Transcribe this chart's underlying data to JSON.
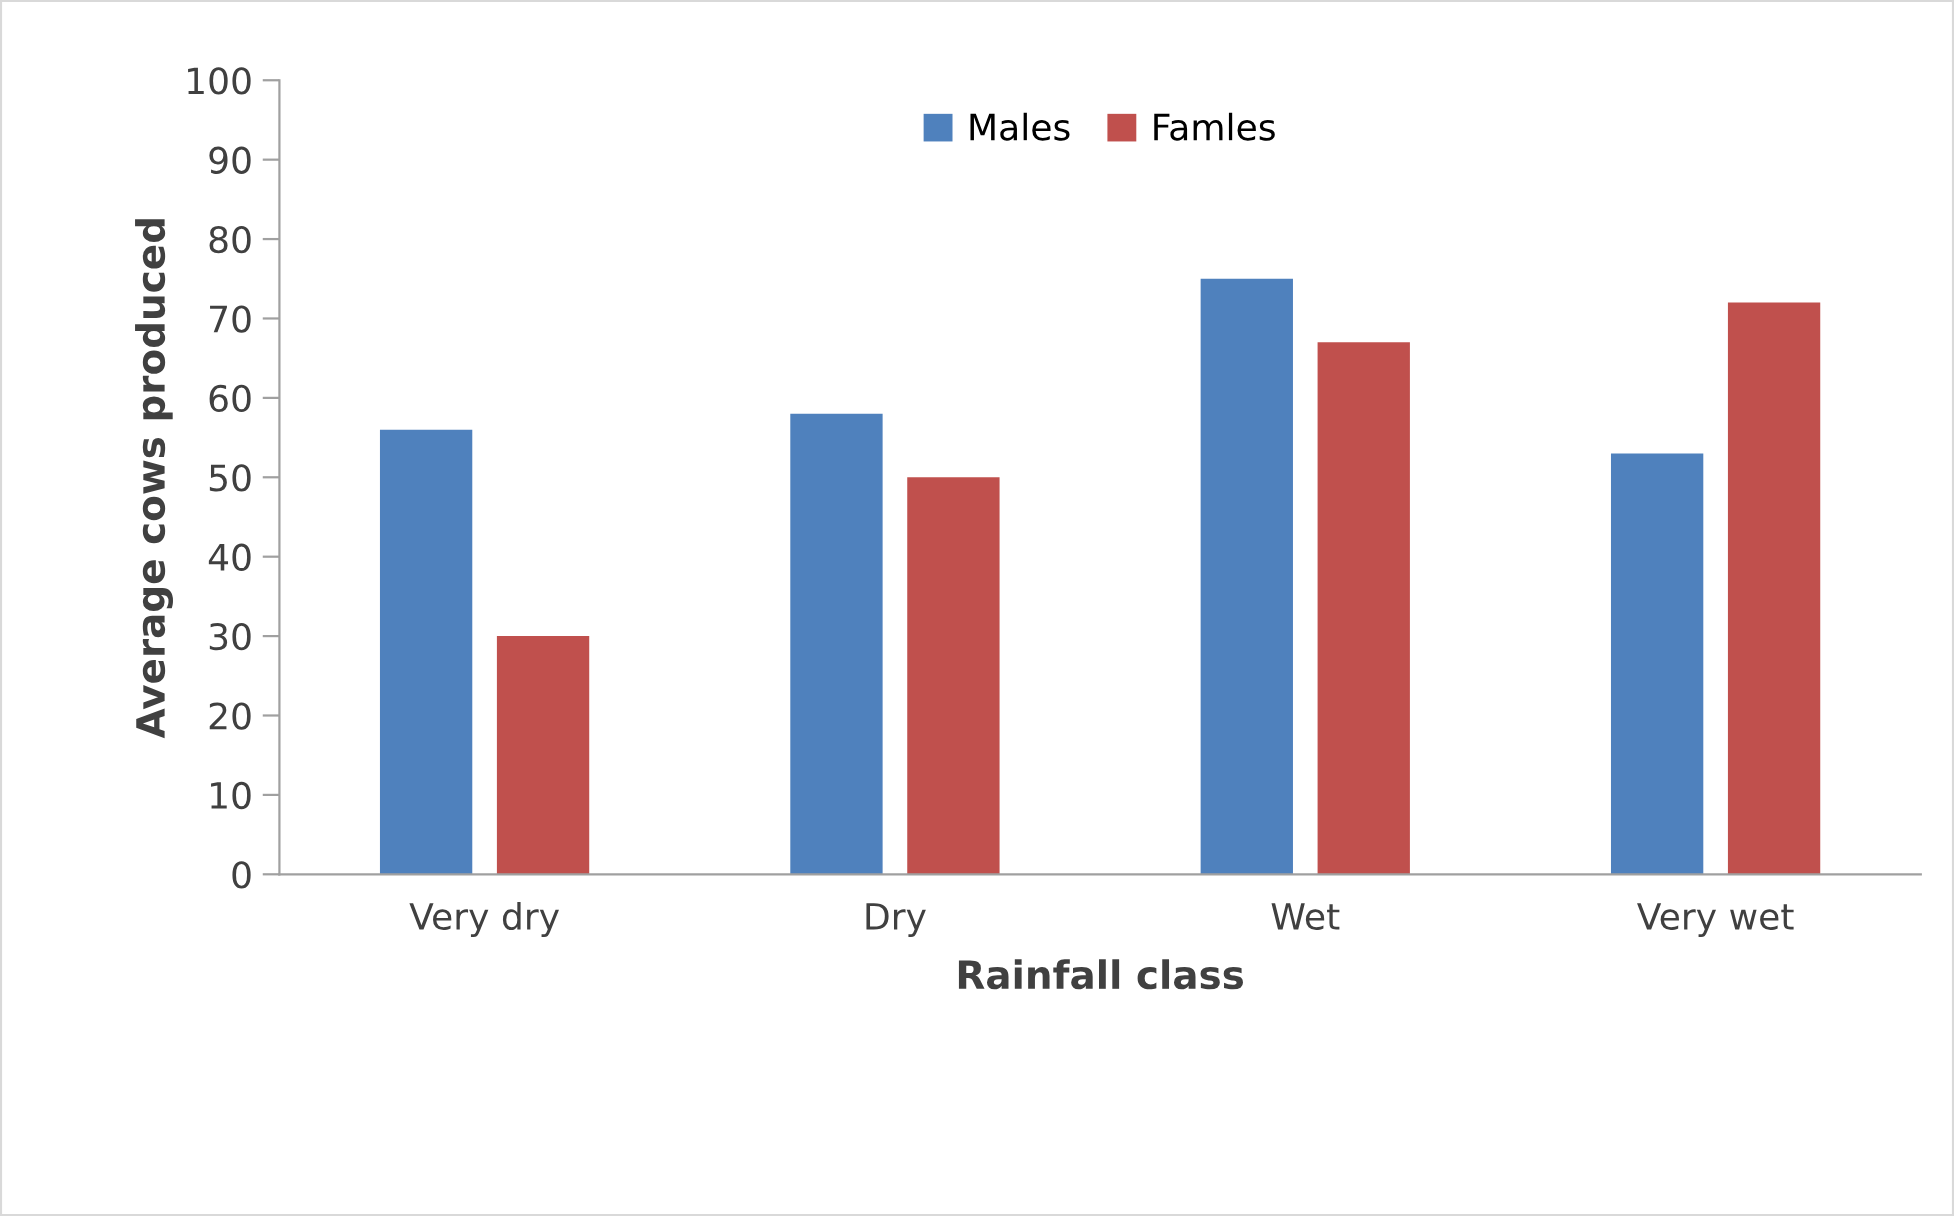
{
  "chart_data": {
    "type": "bar",
    "xlabel": "Rainfall class",
    "ylabel": "Average cows produced",
    "categories": [
      "Very dry",
      "Dry",
      "Wet",
      "Very wet"
    ],
    "series": [
      {
        "name": "Males",
        "color": "#4f81bd",
        "values": [
          56,
          58,
          75,
          53
        ]
      },
      {
        "name": "Famles",
        "color": "#c0504d",
        "values": [
          30,
          50,
          67,
          72
        ]
      }
    ],
    "ylim": [
      0,
      100
    ],
    "yticks": [
      0,
      10,
      20,
      30,
      40,
      50,
      60,
      70,
      80,
      90,
      100
    ],
    "grid": false,
    "legend": "top"
  }
}
